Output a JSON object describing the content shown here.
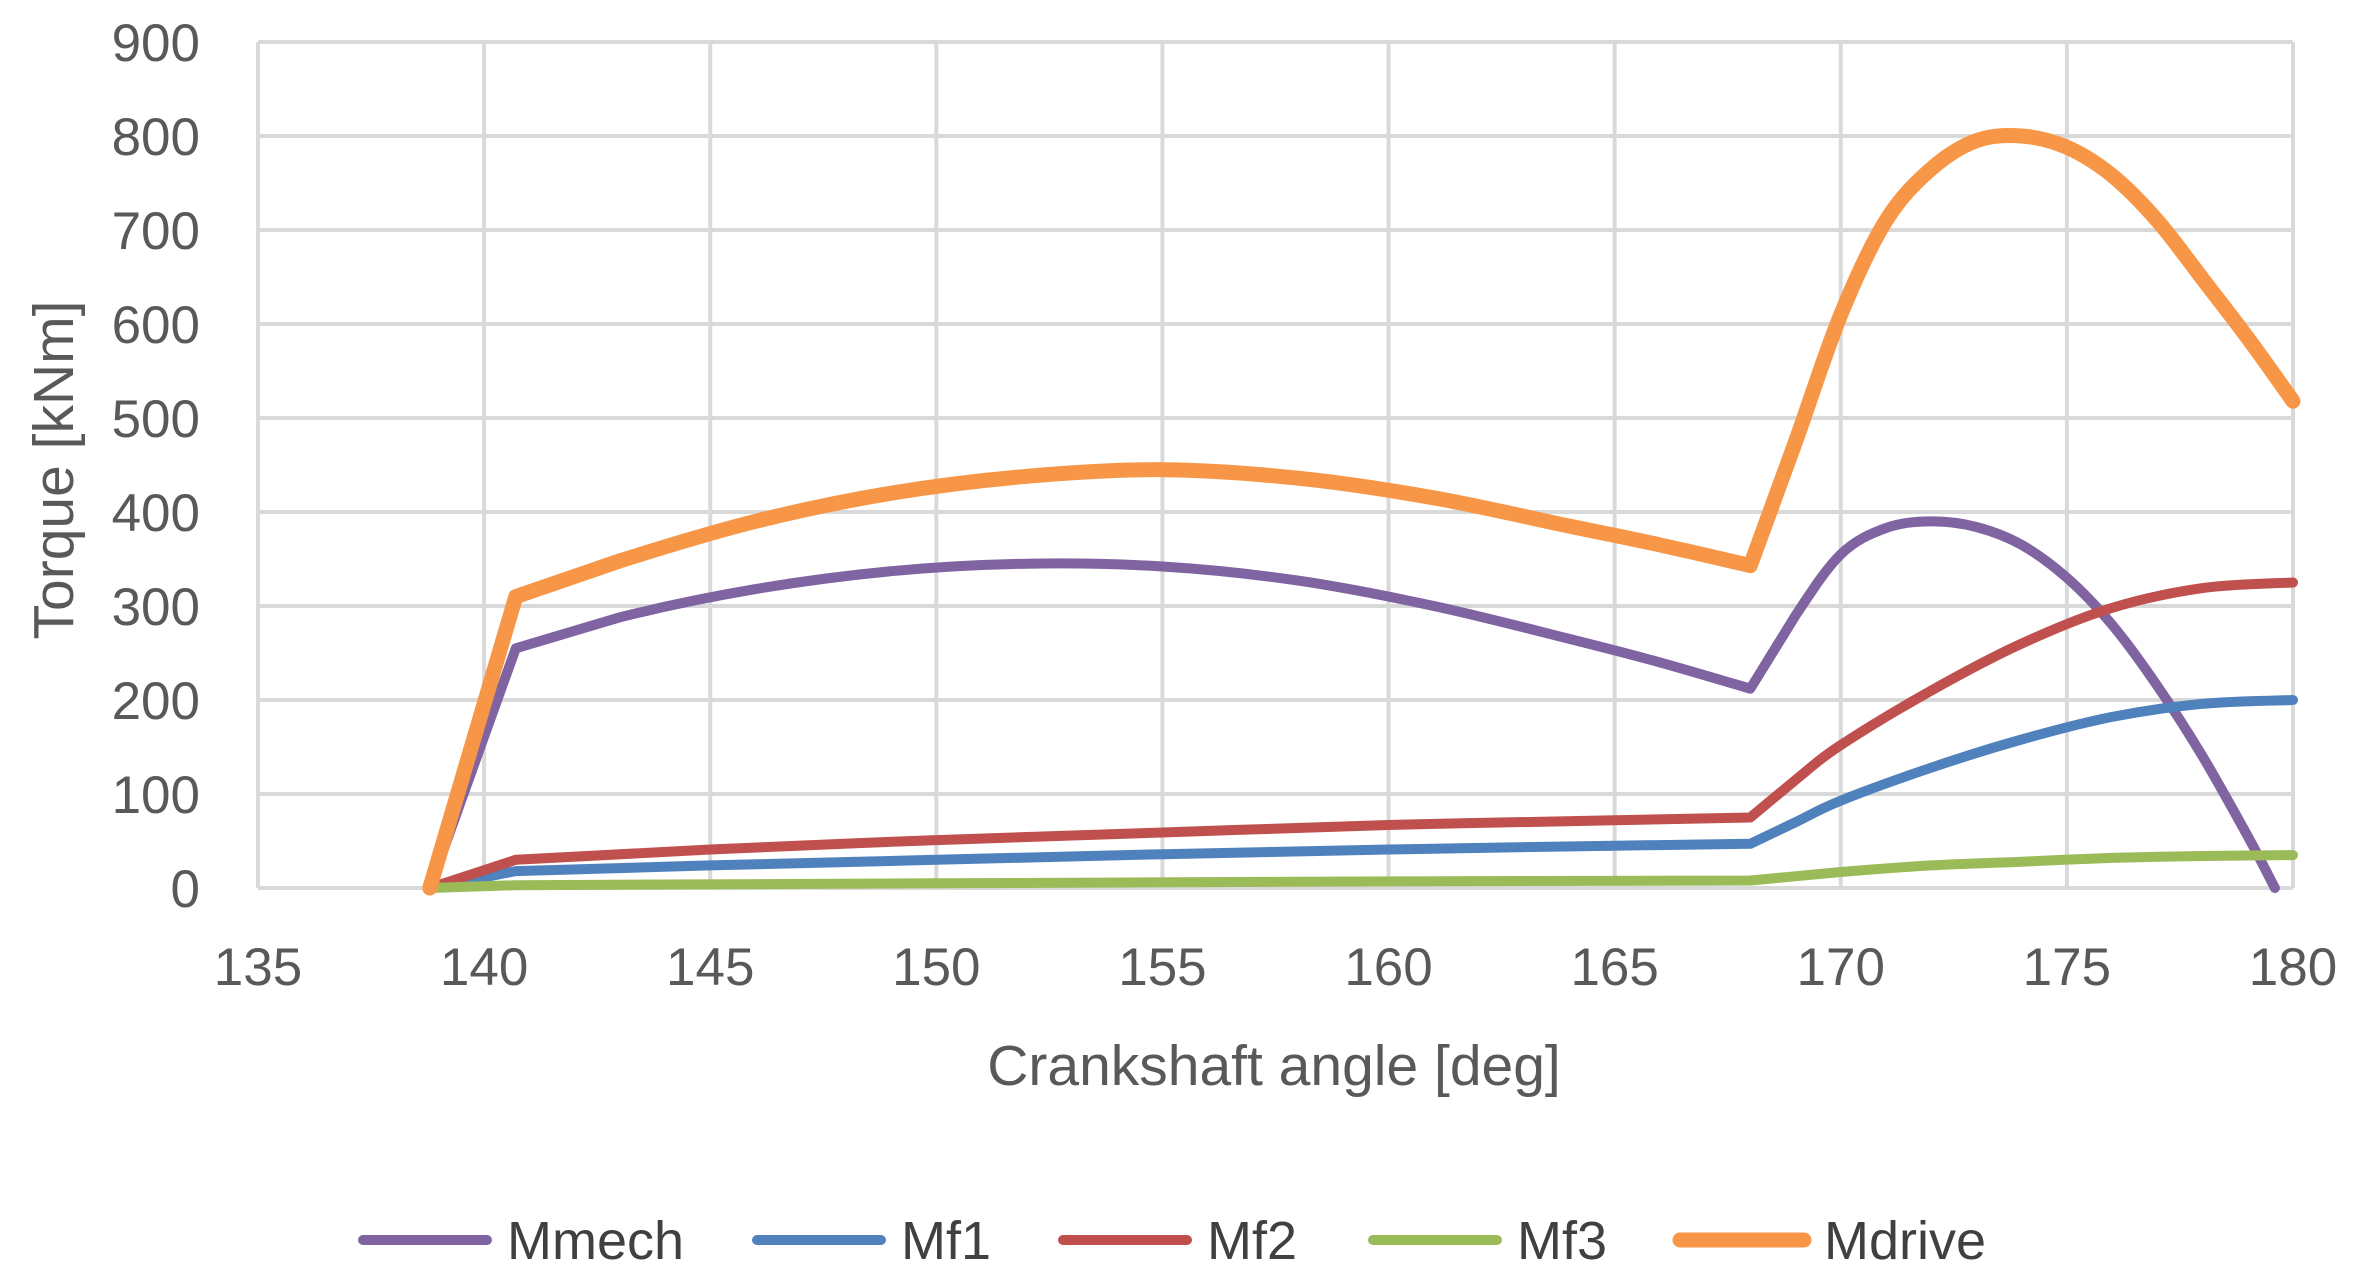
{
  "chart_data": {
    "type": "line",
    "title": "",
    "xlabel": "Crankshaft angle  [deg]",
    "ylabel": "Torque [kNm]",
    "xlim": [
      135,
      180
    ],
    "ylim": [
      0,
      900
    ],
    "x_ticks": [
      135,
      140,
      145,
      150,
      155,
      160,
      165,
      170,
      175,
      180
    ],
    "y_ticks": [
      0,
      100,
      200,
      300,
      400,
      500,
      600,
      700,
      800,
      900
    ],
    "grid": true,
    "legend_position": "bottom",
    "series": [
      {
        "name": "Mmech",
        "color": "#8064A2",
        "points": [
          [
            138.8,
            0
          ],
          [
            140.7,
            255
          ],
          [
            143,
            288
          ],
          [
            146,
            318
          ],
          [
            149,
            337
          ],
          [
            152,
            345
          ],
          [
            155,
            342
          ],
          [
            158,
            327
          ],
          [
            161,
            300
          ],
          [
            164,
            265
          ],
          [
            166,
            240
          ],
          [
            168,
            212
          ],
          [
            169,
            290
          ],
          [
            170,
            355
          ],
          [
            171,
            383
          ],
          [
            172,
            390
          ],
          [
            173,
            384
          ],
          [
            174,
            365
          ],
          [
            175,
            330
          ],
          [
            176,
            280
          ],
          [
            177,
            215
          ],
          [
            178,
            140
          ],
          [
            179,
            55
          ],
          [
            179.6,
            0
          ]
        ]
      },
      {
        "name": "Mf1",
        "color": "#4F81BD",
        "points": [
          [
            138.8,
            0
          ],
          [
            140.7,
            18
          ],
          [
            145,
            24
          ],
          [
            150,
            30
          ],
          [
            155,
            36
          ],
          [
            160,
            41
          ],
          [
            165,
            45
          ],
          [
            168,
            47
          ],
          [
            169,
            70
          ],
          [
            170,
            93
          ],
          [
            172,
            128
          ],
          [
            174,
            158
          ],
          [
            176,
            182
          ],
          [
            178,
            196
          ],
          [
            180,
            200
          ]
        ]
      },
      {
        "name": "Mf2",
        "color": "#C0504D",
        "points": [
          [
            138.8,
            0
          ],
          [
            140.7,
            30
          ],
          [
            145,
            41
          ],
          [
            150,
            51
          ],
          [
            155,
            59
          ],
          [
            160,
            67
          ],
          [
            165,
            72
          ],
          [
            168,
            75
          ],
          [
            169,
            115
          ],
          [
            170,
            152
          ],
          [
            172,
            210
          ],
          [
            174,
            260
          ],
          [
            176,
            298
          ],
          [
            178,
            319
          ],
          [
            180,
            325
          ]
        ]
      },
      {
        "name": "Mf3",
        "color": "#9BBB59",
        "points": [
          [
            138.8,
            0
          ],
          [
            140.7,
            3
          ],
          [
            150,
            5
          ],
          [
            160,
            7
          ],
          [
            168,
            8
          ],
          [
            170,
            17
          ],
          [
            172,
            24
          ],
          [
            174,
            28
          ],
          [
            176,
            32
          ],
          [
            178,
            34
          ],
          [
            180,
            35
          ]
        ]
      },
      {
        "name": "Mdrive",
        "color": "#F79646",
        "points": [
          [
            138.8,
            0
          ],
          [
            140.7,
            310
          ],
          [
            143,
            348
          ],
          [
            146,
            390
          ],
          [
            149,
            420
          ],
          [
            152,
            438
          ],
          [
            155,
            445
          ],
          [
            158,
            436
          ],
          [
            161,
            415
          ],
          [
            164,
            385
          ],
          [
            166,
            365
          ],
          [
            168,
            343
          ],
          [
            169,
            475
          ],
          [
            170,
            610
          ],
          [
            171,
            710
          ],
          [
            172,
            765
          ],
          [
            173,
            795
          ],
          [
            174,
            800
          ],
          [
            175,
            788
          ],
          [
            176,
            758
          ],
          [
            177,
            710
          ],
          [
            178,
            648
          ],
          [
            179,
            585
          ],
          [
            180,
            518
          ]
        ]
      }
    ]
  }
}
